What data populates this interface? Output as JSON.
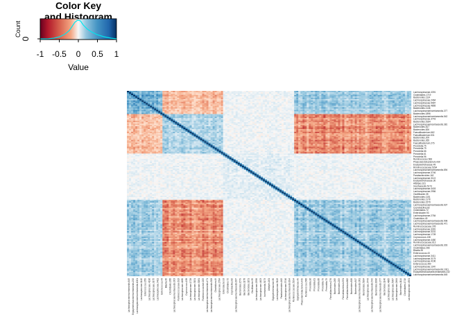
{
  "chart_data": {
    "type": "heatmap",
    "color_key": {
      "title_line1": "Color Key",
      "title_line2": "and Histogram",
      "xlabel": "Value",
      "ylabel": "Count",
      "x_ticks": [
        "-1",
        "-0.5",
        "0",
        "0.5",
        "1"
      ],
      "y_ticks": [
        "0"
      ],
      "range": [
        -1,
        1
      ],
      "colors": {
        "low": "#b2182b",
        "mid": "#f7f7f7",
        "high": "#2166ac",
        "density_line": "#00e5ee"
      }
    },
    "matrix": {
      "n": 136,
      "diagonal_value": 1,
      "blocks": [
        {
          "from": 0,
          "to": 17,
          "value": 0.45
        },
        {
          "from": 17,
          "to": 46,
          "value": 0.3
        },
        {
          "from": 46,
          "to": 80,
          "value": 0.12
        },
        {
          "from": 80,
          "to": 136,
          "value": 0.35
        }
      ],
      "block_offdiag": [
        {
          "a": 0,
          "b": 1,
          "value": -0.3
        },
        {
          "a": 0,
          "b": 3,
          "value": 0.35
        },
        {
          "a": 1,
          "b": 3,
          "value": -0.45
        },
        {
          "a": 0,
          "b": 2,
          "value": 0.05
        },
        {
          "a": 1,
          "b": 2,
          "value": 0.05
        },
        {
          "a": 2,
          "b": 3,
          "value": 0.05
        }
      ]
    },
    "row_labels": [
      "Lachnospiraceae.4391",
      "Clostridiales.1719",
      "Bacteroides.1114",
      "Lachnospiraceae.2464",
      "Lachnospiraceae.5987",
      "Lachnospiraceae.4865",
      "Bacteroides.1146",
      "Lachnospiraceaeincertaesedis.377",
      "Bacteroides.1896",
      "Lachnospiraceaeincertaesedis.542",
      "Lachnospiraceae.3743",
      "Bacteroides.5184",
      "Lachnospiraceaeincertaesedis.381",
      "Bacteroides.817",
      "Bacteroides.826",
      "Faecalibacterium.662",
      "Faecalibacterium.531",
      "Bacteroides.209",
      "Bacteroides.265",
      "Faecalibacterium.276",
      "Prevotella.75",
      "Prevotella.79",
      "Prevotella.66",
      "Prevotella.61",
      "Prevotella.96",
      "Ruminococcus.566",
      "Phascolarctobacterium.439",
      "Erysipelotrichaceae.49",
      "Ruminococcaceae.5294",
      "Lachnospiraceaeincertaesedis.894",
      "Lachnospiraceae.3746",
      "Parabacteroides.162",
      "Lachnospiraceae.3113",
      "Erysipelotrichaceae.30",
      "Alistipes.161",
      "Incertaesedis.5173",
      "Lachnospiraceae.4403",
      "Lachnospiraceae.2956",
      "Oscillibacter.35",
      "Bacteroides.1151",
      "Bacteroides.1178",
      "Bacteroides.1579",
      "Lachnospiraceaeincertaesedis.637",
      "Coprobacillus.82",
      "Clostridiales.72",
      "Enterobacter.93",
      "Lachnospiraceae.2784",
      "Clostridium.49",
      "Lachnospiraceaeincertaesedis.508",
      "Lachnospiraceaeincertaesedis.471",
      "Ruminococcaceae.205",
      "Lachnospiraceae.3281",
      "Lachnospiraceae.3151",
      "Lachnospiraceae.1728",
      "Coprococcus.138",
      "Lachnospiraceae.4480",
      "Ruminococcaceae.613",
      "Lachnospiraceaeincertaesedis.303",
      "Clostridiales.266",
      "Blautia.30",
      "Enterococcus.43",
      "Lachnospiraceae.3411",
      "Lachnospiraceae.3175",
      "Lachnospiraceae.4196",
      "Enterococcus.350",
      "Lachnospiraceae.1140",
      "Lachnospiraceaeincertaesedis.1001",
      "Erysipelotrichaceaeincertaesedis.232",
      "Lachnospiraceaeincertaesedis.645"
    ],
    "col_labels": [
      "Lachnospiraceaeincertaesedis.645",
      "Erysipelotrichaceaeincertaesedis.232",
      "Lachnospiraceaeincertaesedis.1001",
      "Lachnospiraceae.1140",
      "Enterococcus.350",
      "Lachnospiraceae.4196",
      "Lachnospiraceae.3175",
      "Lachnospiraceae.3411",
      "Enterococcus.43",
      "Blautia.30",
      "Clostridiales.266",
      "Lachnospiraceaeincertaesedis.303",
      "Ruminococcaceae.613",
      "Lachnospiraceae.4480",
      "Coprococcus.138",
      "Lachnospiraceae.1728",
      "Lachnospiraceae.3151",
      "Lachnospiraceae.3281",
      "Ruminococcaceae.205",
      "Lachnospiraceaeincertaesedis.471",
      "Lachnospiraceaeincertaesedis.508",
      "Clostridium.49",
      "Lachnospiraceae.2784",
      "Enterobacter.93",
      "Clostridiales.72",
      "Coprobacillus.82",
      "Lachnospiraceaeincertaesedis.637",
      "Bacteroides.1579",
      "Bacteroides.1178",
      "Bacteroides.1151",
      "Oscillibacter.35",
      "Lachnospiraceae.2956",
      "Lachnospiraceae.4403",
      "Incertaesedis.5173",
      "Alistipes.161",
      "Erysipelotrichaceae.30",
      "Lachnospiraceae.3113",
      "Parabacteroides.162",
      "Lachnospiraceae.3746",
      "Lachnospiraceaeincertaesedis.894",
      "Ruminococcaceae.5294",
      "Erysipelotrichaceae.49",
      "Phascolarctobacterium.439",
      "Ruminococcus.566",
      "Prevotella.96",
      "Prevotella.61",
      "Prevotella.66",
      "Prevotella.79",
      "Prevotella.75",
      "Faecalibacterium.276",
      "Bacteroides.265",
      "Bacteroides.209",
      "Faecalibacterium.531",
      "Faecalibacterium.662",
      "Bacteroides.826",
      "Bacteroides.817",
      "Lachnospiraceaeincertaesedis.381",
      "Bacteroides.5184",
      "Lachnospiraceae.3743",
      "Lachnospiraceaeincertaesedis.542",
      "Bacteroides.1896",
      "Lachnospiraceaeincertaesedis.377",
      "Bacteroides.1146",
      "Lachnospiraceae.4865",
      "Lachnospiraceae.5987",
      "Lachnospiraceae.2464",
      "Bacteroides.1114",
      "Clostridiales.1719",
      "Lachnospiraceae.4391"
    ]
  }
}
